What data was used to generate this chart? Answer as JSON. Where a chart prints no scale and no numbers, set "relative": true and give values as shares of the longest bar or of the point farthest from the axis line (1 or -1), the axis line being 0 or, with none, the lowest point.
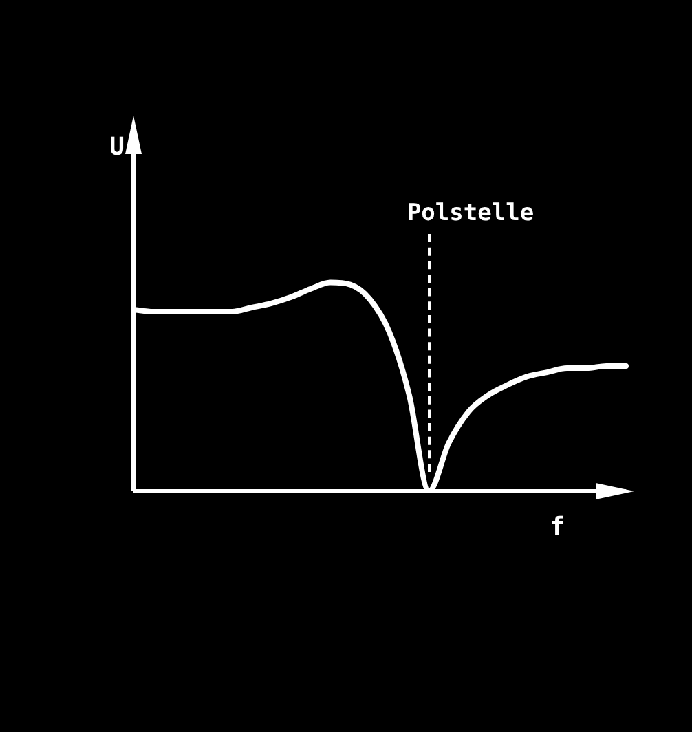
{
  "chart_data": {
    "type": "line",
    "relative": true,
    "xlabel": "f",
    "ylabel": "U",
    "categories": [
      null,
      null,
      null,
      null,
      null,
      null,
      null,
      null,
      null,
      null,
      null,
      null,
      null,
      null,
      null,
      null,
      null,
      null,
      null,
      null,
      null,
      null,
      null,
      null,
      null,
      null
    ],
    "series": [
      {
        "color": "#ffffff",
        "values": [
          0.87,
          0.86,
          0.86,
          0.86,
          0.86,
          0.86,
          0.88,
          0.9,
          0.93,
          0.97,
          1,
          0.99,
          0.92,
          0.76,
          0.46,
          0,
          0.23,
          0.38,
          0.46,
          0.51,
          0.55,
          0.57,
          0.59,
          0.59,
          0.6,
          0.6
        ]
      }
    ],
    "annotations": [
      "Polstelle"
    ],
    "marker": "none",
    "legend": false
  }
}
